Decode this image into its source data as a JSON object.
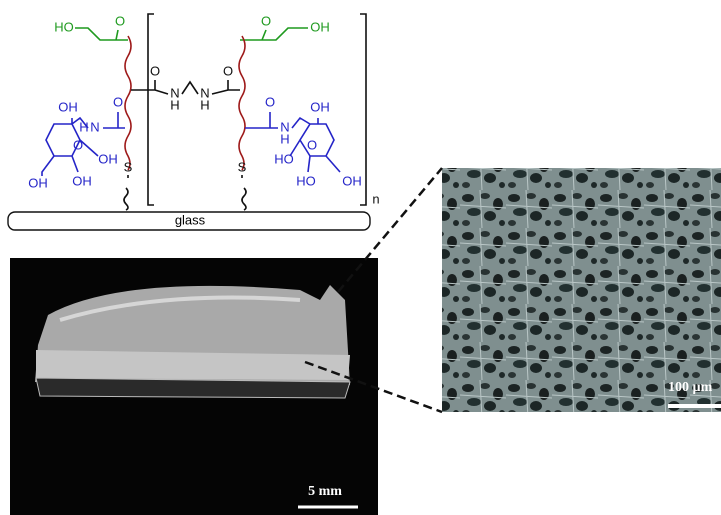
{
  "structure": {
    "labels": [
      "HO",
      "O",
      "O",
      "OH",
      "O",
      "N",
      "H",
      "N",
      "H",
      "O",
      "OH",
      "N",
      "H",
      "O",
      "O",
      "OH",
      "OH",
      "OH",
      "O",
      "N",
      "H",
      "OH",
      "O",
      "HO",
      "HO",
      "OH",
      "S",
      "S",
      "n"
    ],
    "substrate": "glass"
  },
  "photo": {
    "scale_bar": "5 mm"
  },
  "micrograph": {
    "scale_bar": "100 µm"
  }
}
